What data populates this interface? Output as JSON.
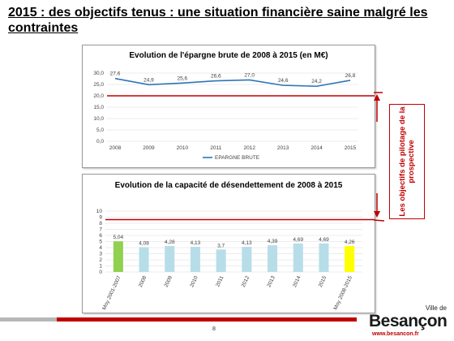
{
  "slide": {
    "title": "2015 : des objectifs tenus : une situation financière saine malgré les contraintes",
    "side_note": "Les objectifs de pilotage de la prospective",
    "page_number": "8"
  },
  "logo": {
    "small": "Ville de",
    "main": "Besançon",
    "url": "www.besancon.fr"
  },
  "colors": {
    "accent_red": "#c00000",
    "line_blue": "#2e75b6",
    "bar_light_blue": "#b7dee8",
    "bar_green": "#92d050",
    "bar_yellow": "#ffff00"
  },
  "chart_data": [
    {
      "type": "line",
      "title": "Evolution de l'épargne brute de 2008 à 2015 (en M€)",
      "categories": [
        "2008",
        "2009",
        "2010",
        "2011",
        "2012",
        "2013",
        "2014",
        "2015"
      ],
      "series": [
        {
          "name": "EPARGNE BRUTE",
          "values": [
            27.6,
            24.9,
            25.6,
            26.6,
            27.0,
            24.6,
            24.2,
            26.8
          ]
        }
      ],
      "value_labels": [
        "27,6",
        "24,9",
        "25,6",
        "26,6",
        "27,0",
        "24,6",
        "24,2",
        "26,8"
      ],
      "y_ticks": [
        "0,0",
        "5,0",
        "10,0",
        "15,0",
        "20,0",
        "25,0",
        "30,0"
      ],
      "ylim": [
        0,
        30
      ],
      "reference_line": 20,
      "grid": true,
      "legend": "bottom"
    },
    {
      "type": "bar",
      "title": "Evolution de la capacité de désendettement de 2008 à 2015",
      "categories": [
        "Moy 2001-2007",
        "2008",
        "2009",
        "2010",
        "2011",
        "2012",
        "2013",
        "2014",
        "2015",
        "Moy 2008-2015"
      ],
      "values": [
        5.04,
        4.08,
        4.28,
        4.13,
        3.7,
        4.13,
        4.39,
        4.69,
        4.69,
        4.26
      ],
      "value_labels": [
        "5,04",
        "4,08",
        "4,28",
        "4,13",
        "3,7",
        "4,13",
        "4,39",
        "4,69",
        "4,69",
        "4,26"
      ],
      "y_ticks": [
        "0",
        "1",
        "2",
        "3",
        "4",
        "5",
        "6",
        "7",
        "8",
        "9",
        "10"
      ],
      "ylim": [
        0,
        10
      ],
      "reference_line": 8.6,
      "grid": true,
      "legend": "none"
    }
  ]
}
